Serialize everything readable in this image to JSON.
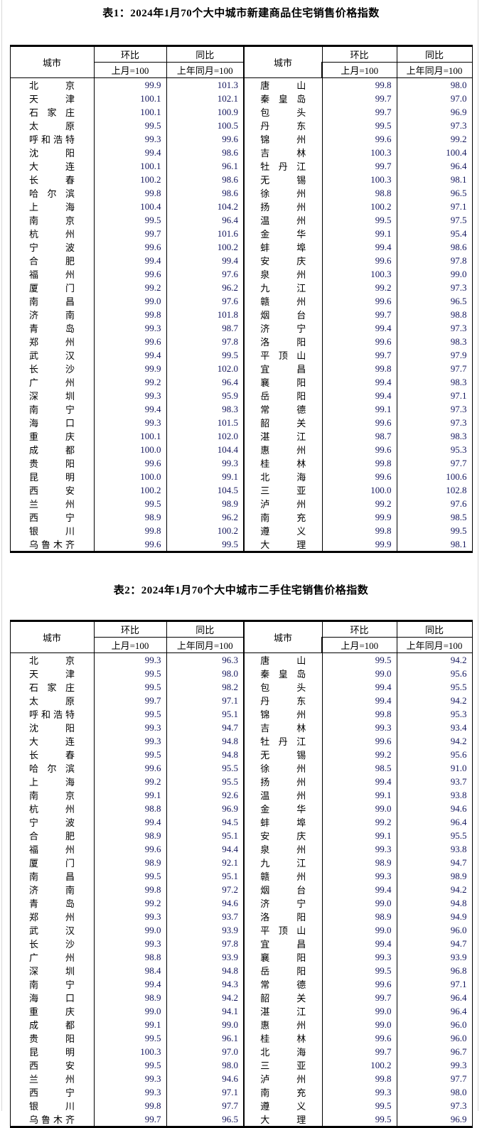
{
  "colors": {
    "number_text": "#15175e",
    "body_text": "#000000",
    "table_border": "#000000",
    "page_frame": "#d9d9d9",
    "background": "#ffffff"
  },
  "tables": [
    {
      "title": "表1：2024年1月70个大中城市新建商品住宅销售价格指数",
      "header": {
        "city": "城市",
        "mom": "环比",
        "yoy": "同比",
        "mom_sub": "上月=100",
        "yoy_sub": "上年同月=100"
      },
      "left": [
        {
          "city": "北京",
          "mom": "99.9",
          "yoy": "101.3"
        },
        {
          "city": "天津",
          "mom": "100.1",
          "yoy": "102.1"
        },
        {
          "city": "石家庄",
          "mom": "100.1",
          "yoy": "100.9"
        },
        {
          "city": "太原",
          "mom": "99.5",
          "yoy": "100.5"
        },
        {
          "city": "呼和浩特",
          "mom": "99.3",
          "yoy": "99.6"
        },
        {
          "city": "沈阳",
          "mom": "99.4",
          "yoy": "98.6"
        },
        {
          "city": "大连",
          "mom": "100.1",
          "yoy": "96.1"
        },
        {
          "city": "长春",
          "mom": "100.2",
          "yoy": "98.6"
        },
        {
          "city": "哈尔滨",
          "mom": "99.8",
          "yoy": "98.6"
        },
        {
          "city": "上海",
          "mom": "100.4",
          "yoy": "104.2"
        },
        {
          "city": "南京",
          "mom": "99.5",
          "yoy": "96.4"
        },
        {
          "city": "杭州",
          "mom": "99.7",
          "yoy": "101.6"
        },
        {
          "city": "宁波",
          "mom": "99.6",
          "yoy": "100.2"
        },
        {
          "city": "合肥",
          "mom": "99.4",
          "yoy": "99.4"
        },
        {
          "city": "福州",
          "mom": "99.6",
          "yoy": "97.6"
        },
        {
          "city": "厦门",
          "mom": "99.2",
          "yoy": "96.2"
        },
        {
          "city": "南昌",
          "mom": "99.0",
          "yoy": "97.6"
        },
        {
          "city": "济南",
          "mom": "99.8",
          "yoy": "101.8"
        },
        {
          "city": "青岛",
          "mom": "99.3",
          "yoy": "98.7"
        },
        {
          "city": "郑州",
          "mom": "99.6",
          "yoy": "97.8"
        },
        {
          "city": "武汉",
          "mom": "99.4",
          "yoy": "99.5"
        },
        {
          "city": "长沙",
          "mom": "99.9",
          "yoy": "102.0"
        },
        {
          "city": "广州",
          "mom": "99.2",
          "yoy": "96.4"
        },
        {
          "city": "深圳",
          "mom": "99.3",
          "yoy": "95.9"
        },
        {
          "city": "南宁",
          "mom": "99.4",
          "yoy": "98.3"
        },
        {
          "city": "海口",
          "mom": "99.3",
          "yoy": "101.5"
        },
        {
          "city": "重庆",
          "mom": "100.1",
          "yoy": "102.0"
        },
        {
          "city": "成都",
          "mom": "100.0",
          "yoy": "104.4"
        },
        {
          "city": "贵阳",
          "mom": "99.6",
          "yoy": "99.3"
        },
        {
          "city": "昆明",
          "mom": "100.0",
          "yoy": "99.1"
        },
        {
          "city": "西安",
          "mom": "100.2",
          "yoy": "104.5"
        },
        {
          "city": "兰州",
          "mom": "99.5",
          "yoy": "98.9"
        },
        {
          "city": "西宁",
          "mom": "98.9",
          "yoy": "96.2"
        },
        {
          "city": "银川",
          "mom": "99.8",
          "yoy": "100.2"
        },
        {
          "city": "乌鲁木齐",
          "mom": "99.6",
          "yoy": "99.5"
        }
      ],
      "right": [
        {
          "city": "唐山",
          "mom": "99.8",
          "yoy": "98.0"
        },
        {
          "city": "秦皇岛",
          "mom": "99.7",
          "yoy": "97.0"
        },
        {
          "city": "包头",
          "mom": "99.7",
          "yoy": "96.9"
        },
        {
          "city": "丹东",
          "mom": "99.5",
          "yoy": "97.3"
        },
        {
          "city": "锦州",
          "mom": "99.6",
          "yoy": "99.2"
        },
        {
          "city": "吉林",
          "mom": "100.3",
          "yoy": "100.4"
        },
        {
          "city": "牡丹江",
          "mom": "99.7",
          "yoy": "96.4"
        },
        {
          "city": "无锡",
          "mom": "100.3",
          "yoy": "98.1"
        },
        {
          "city": "徐州",
          "mom": "98.8",
          "yoy": "96.5"
        },
        {
          "city": "扬州",
          "mom": "100.2",
          "yoy": "97.1"
        },
        {
          "city": "温州",
          "mom": "99.5",
          "yoy": "97.5"
        },
        {
          "city": "金华",
          "mom": "99.1",
          "yoy": "95.4"
        },
        {
          "city": "蚌埠",
          "mom": "99.4",
          "yoy": "98.6"
        },
        {
          "city": "安庆",
          "mom": "99.6",
          "yoy": "97.8"
        },
        {
          "city": "泉州",
          "mom": "100.3",
          "yoy": "99.0"
        },
        {
          "city": "九江",
          "mom": "99.2",
          "yoy": "97.3"
        },
        {
          "city": "赣州",
          "mom": "99.6",
          "yoy": "96.5"
        },
        {
          "city": "烟台",
          "mom": "99.7",
          "yoy": "98.8"
        },
        {
          "city": "济宁",
          "mom": "99.4",
          "yoy": "97.3"
        },
        {
          "city": "洛阳",
          "mom": "99.6",
          "yoy": "98.3"
        },
        {
          "city": "平顶山",
          "mom": "99.7",
          "yoy": "97.9"
        },
        {
          "city": "宜昌",
          "mom": "99.8",
          "yoy": "97.7"
        },
        {
          "city": "襄阳",
          "mom": "99.4",
          "yoy": "98.3"
        },
        {
          "city": "岳阳",
          "mom": "99.4",
          "yoy": "97.1"
        },
        {
          "city": "常德",
          "mom": "99.1",
          "yoy": "97.3"
        },
        {
          "city": "韶关",
          "mom": "99.6",
          "yoy": "97.3"
        },
        {
          "city": "湛江",
          "mom": "98.7",
          "yoy": "98.3"
        },
        {
          "city": "惠州",
          "mom": "99.6",
          "yoy": "95.3"
        },
        {
          "city": "桂林",
          "mom": "99.8",
          "yoy": "97.7"
        },
        {
          "city": "北海",
          "mom": "99.6",
          "yoy": "100.6"
        },
        {
          "city": "三亚",
          "mom": "100.0",
          "yoy": "102.8"
        },
        {
          "city": "泸州",
          "mom": "99.2",
          "yoy": "97.6"
        },
        {
          "city": "南充",
          "mom": "99.9",
          "yoy": "98.5"
        },
        {
          "city": "遵义",
          "mom": "99.8",
          "yoy": "99.5"
        },
        {
          "city": "大理",
          "mom": "99.9",
          "yoy": "98.1"
        }
      ]
    },
    {
      "title": "表2：2024年1月70个大中城市二手住宅销售价格指数",
      "header": {
        "city": "城市",
        "mom": "环比",
        "yoy": "同比",
        "mom_sub": "上月=100",
        "yoy_sub": "上年同月=100"
      },
      "left": [
        {
          "city": "北京",
          "mom": "99.3",
          "yoy": "96.3"
        },
        {
          "city": "天津",
          "mom": "99.5",
          "yoy": "98.0"
        },
        {
          "city": "石家庄",
          "mom": "99.5",
          "yoy": "98.2"
        },
        {
          "city": "太原",
          "mom": "99.7",
          "yoy": "97.1"
        },
        {
          "city": "呼和浩特",
          "mom": "99.5",
          "yoy": "95.1"
        },
        {
          "city": "沈阳",
          "mom": "99.3",
          "yoy": "94.7"
        },
        {
          "city": "大连",
          "mom": "99.3",
          "yoy": "94.8"
        },
        {
          "city": "长春",
          "mom": "99.5",
          "yoy": "94.8"
        },
        {
          "city": "哈尔滨",
          "mom": "99.6",
          "yoy": "95.5"
        },
        {
          "city": "上海",
          "mom": "99.2",
          "yoy": "95.5"
        },
        {
          "city": "南京",
          "mom": "99.1",
          "yoy": "92.6"
        },
        {
          "city": "杭州",
          "mom": "98.8",
          "yoy": "96.9"
        },
        {
          "city": "宁波",
          "mom": "99.4",
          "yoy": "94.5"
        },
        {
          "city": "合肥",
          "mom": "98.9",
          "yoy": "95.1"
        },
        {
          "city": "福州",
          "mom": "99.6",
          "yoy": "94.4"
        },
        {
          "city": "厦门",
          "mom": "98.9",
          "yoy": "92.1"
        },
        {
          "city": "南昌",
          "mom": "99.5",
          "yoy": "95.1"
        },
        {
          "city": "济南",
          "mom": "99.8",
          "yoy": "97.2"
        },
        {
          "city": "青岛",
          "mom": "99.2",
          "yoy": "94.6"
        },
        {
          "city": "郑州",
          "mom": "99.3",
          "yoy": "93.7"
        },
        {
          "city": "武汉",
          "mom": "99.0",
          "yoy": "93.9"
        },
        {
          "city": "长沙",
          "mom": "99.3",
          "yoy": "97.8"
        },
        {
          "city": "广州",
          "mom": "98.8",
          "yoy": "93.9"
        },
        {
          "city": "深圳",
          "mom": "98.4",
          "yoy": "94.8"
        },
        {
          "city": "南宁",
          "mom": "99.4",
          "yoy": "94.3"
        },
        {
          "city": "海口",
          "mom": "98.9",
          "yoy": "94.2"
        },
        {
          "city": "重庆",
          "mom": "99.0",
          "yoy": "94.1"
        },
        {
          "city": "成都",
          "mom": "99.1",
          "yoy": "99.0"
        },
        {
          "city": "贵阳",
          "mom": "99.5",
          "yoy": "96.1"
        },
        {
          "city": "昆明",
          "mom": "100.3",
          "yoy": "97.0"
        },
        {
          "city": "西安",
          "mom": "99.5",
          "yoy": "98.0"
        },
        {
          "city": "兰州",
          "mom": "99.3",
          "yoy": "94.6"
        },
        {
          "city": "西宁",
          "mom": "99.3",
          "yoy": "97.1"
        },
        {
          "city": "银川",
          "mom": "99.8",
          "yoy": "97.7"
        },
        {
          "city": "乌鲁木齐",
          "mom": "99.7",
          "yoy": "96.5"
        }
      ],
      "right": [
        {
          "city": "唐山",
          "mom": "99.5",
          "yoy": "94.2"
        },
        {
          "city": "秦皇岛",
          "mom": "99.0",
          "yoy": "95.6"
        },
        {
          "city": "包头",
          "mom": "99.4",
          "yoy": "95.5"
        },
        {
          "city": "丹东",
          "mom": "99.4",
          "yoy": "94.2"
        },
        {
          "city": "锦州",
          "mom": "99.8",
          "yoy": "95.3"
        },
        {
          "city": "吉林",
          "mom": "99.3",
          "yoy": "93.4"
        },
        {
          "city": "牡丹江",
          "mom": "99.6",
          "yoy": "94.2"
        },
        {
          "city": "无锡",
          "mom": "99.2",
          "yoy": "95.6"
        },
        {
          "city": "徐州",
          "mom": "98.5",
          "yoy": "91.0"
        },
        {
          "city": "扬州",
          "mom": "99.4",
          "yoy": "93.7"
        },
        {
          "city": "温州",
          "mom": "99.1",
          "yoy": "93.8"
        },
        {
          "city": "金华",
          "mom": "99.0",
          "yoy": "94.6"
        },
        {
          "city": "蚌埠",
          "mom": "99.2",
          "yoy": "96.4"
        },
        {
          "city": "安庆",
          "mom": "99.1",
          "yoy": "95.5"
        },
        {
          "city": "泉州",
          "mom": "99.3",
          "yoy": "93.8"
        },
        {
          "city": "九江",
          "mom": "98.9",
          "yoy": "94.7"
        },
        {
          "city": "赣州",
          "mom": "99.3",
          "yoy": "98.9"
        },
        {
          "city": "烟台",
          "mom": "99.4",
          "yoy": "94.2"
        },
        {
          "city": "济宁",
          "mom": "99.0",
          "yoy": "94.8"
        },
        {
          "city": "洛阳",
          "mom": "98.9",
          "yoy": "94.9"
        },
        {
          "city": "平顶山",
          "mom": "99.0",
          "yoy": "96.0"
        },
        {
          "city": "宜昌",
          "mom": "99.4",
          "yoy": "94.7"
        },
        {
          "city": "襄阳",
          "mom": "99.3",
          "yoy": "93.9"
        },
        {
          "city": "岳阳",
          "mom": "99.5",
          "yoy": "96.8"
        },
        {
          "city": "常德",
          "mom": "99.6",
          "yoy": "97.1"
        },
        {
          "city": "韶关",
          "mom": "99.7",
          "yoy": "96.4"
        },
        {
          "city": "湛江",
          "mom": "99.0",
          "yoy": "96.4"
        },
        {
          "city": "惠州",
          "mom": "99.0",
          "yoy": "96.0"
        },
        {
          "city": "桂林",
          "mom": "99.6",
          "yoy": "96.0"
        },
        {
          "city": "北海",
          "mom": "99.7",
          "yoy": "96.7"
        },
        {
          "city": "三亚",
          "mom": "100.2",
          "yoy": "99.3"
        },
        {
          "city": "泸州",
          "mom": "99.8",
          "yoy": "97.7"
        },
        {
          "city": "南充",
          "mom": "99.3",
          "yoy": "98.0"
        },
        {
          "city": "遵义",
          "mom": "99.5",
          "yoy": "97.3"
        },
        {
          "city": "大理",
          "mom": "99.5",
          "yoy": "96.9"
        }
      ]
    }
  ]
}
